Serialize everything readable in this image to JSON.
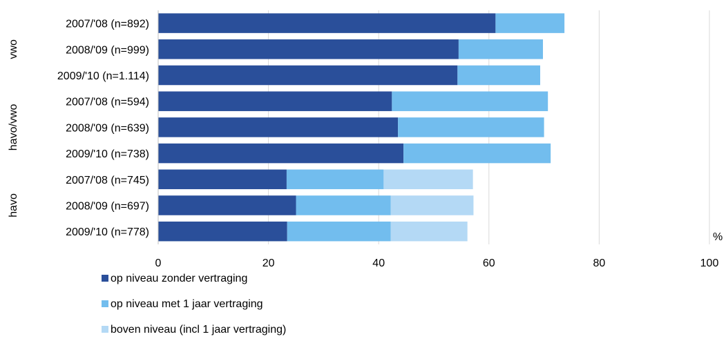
{
  "chart_data": {
    "type": "bar",
    "orientation": "horizontal",
    "stacked": true,
    "groups": [
      {
        "name": "vwo",
        "categories": [
          "2007/'08 (n=892)",
          "2008/'09 (n=999)",
          "2009/'10 (n=1.114)"
        ]
      },
      {
        "name": "havo/vwo",
        "categories": [
          "2007/'08 (n=594)",
          "2008/'09 (n=639)",
          "2009/'10 (n=738)"
        ]
      },
      {
        "name": "havo",
        "categories": [
          "2007/'08 (n=745)",
          "2008/'09 (n=697)",
          "2009/'10 (n=778)"
        ]
      }
    ],
    "categories": [
      "2007/'08 (n=892)",
      "2008/'09 (n=999)",
      "2009/'10 (n=1.114)",
      "2007/'08 (n=594)",
      "2008/'09 (n=639)",
      "2009/'10 (n=738)",
      "2007/'08 (n=745)",
      "2008/'09 (n=697)",
      "2009/'10 (n=778)"
    ],
    "series": [
      {
        "name": "op niveau zonder vertraging",
        "color": "#2a4f9a",
        "values": [
          61.2,
          54.5,
          54.3,
          42.4,
          43.5,
          44.5,
          23.3,
          25.0,
          23.4
        ]
      },
      {
        "name": "op niveau met 1 jaar vertraging",
        "color": "#72bdee",
        "values": [
          12.5,
          15.3,
          15.0,
          28.3,
          26.5,
          26.7,
          17.6,
          17.2,
          18.8
        ]
      },
      {
        "name": "boven niveau (incl 1 jaar vertraging)",
        "color": "#b4d9f5",
        "values": [
          0,
          0,
          0,
          0,
          0,
          0,
          16.2,
          15.0,
          13.9
        ]
      }
    ],
    "xlim": [
      0,
      100
    ],
    "xticks": [
      0,
      20,
      40,
      60,
      80,
      100
    ],
    "unit_label": "%",
    "grid": true,
    "legend_position": "bottom-left"
  }
}
